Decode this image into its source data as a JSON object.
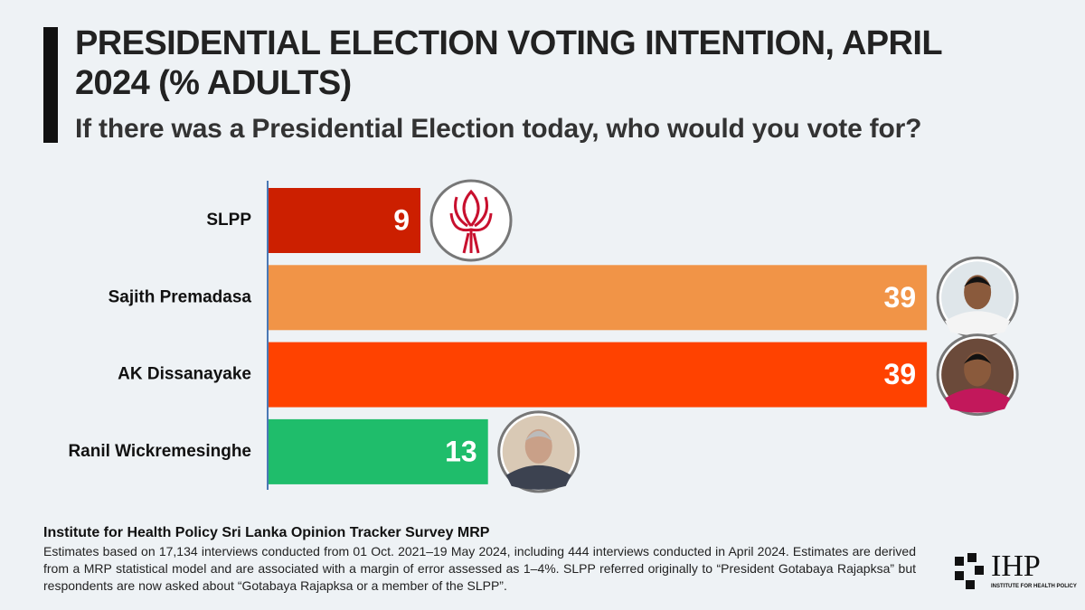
{
  "chart_data": {
    "type": "barh",
    "title": "PRESIDENTIAL ELECTION VOTING INTENTION, APRIL 2024 (% ADULTS)",
    "subtitle": "If there was a Presidential Election today, who would you vote for?",
    "categories": [
      "SLPP",
      "Sajith Premadasa",
      "AK Dissanayake",
      "Ranil Wickremesinghe"
    ],
    "values": [
      9,
      39,
      39,
      13
    ],
    "colors": [
      "#cc1f00",
      "#f19447",
      "#ff4200",
      "#1fbd6b"
    ]
  },
  "footer": {
    "source": "Institute for Health Policy Sri Lanka Opinion Tracker Survey MRP",
    "notes": "Estimates based on 17,134 interviews conducted from 01 Oct. 2021–19 May 2024, including 444 interviews conducted in April 2024. Estimates are derived from a MRP statistical model and are associated with a margin of error assessed as 1–4%. SLPP referred originally to “President Gotabaya Rajapksa” but respondents are now asked about “Gotabaya Rajapksa or a member of the SLPP”."
  },
  "logo": {
    "name": "IHP",
    "tagline": "INSTITUTE FOR HEALTH POLICY"
  }
}
